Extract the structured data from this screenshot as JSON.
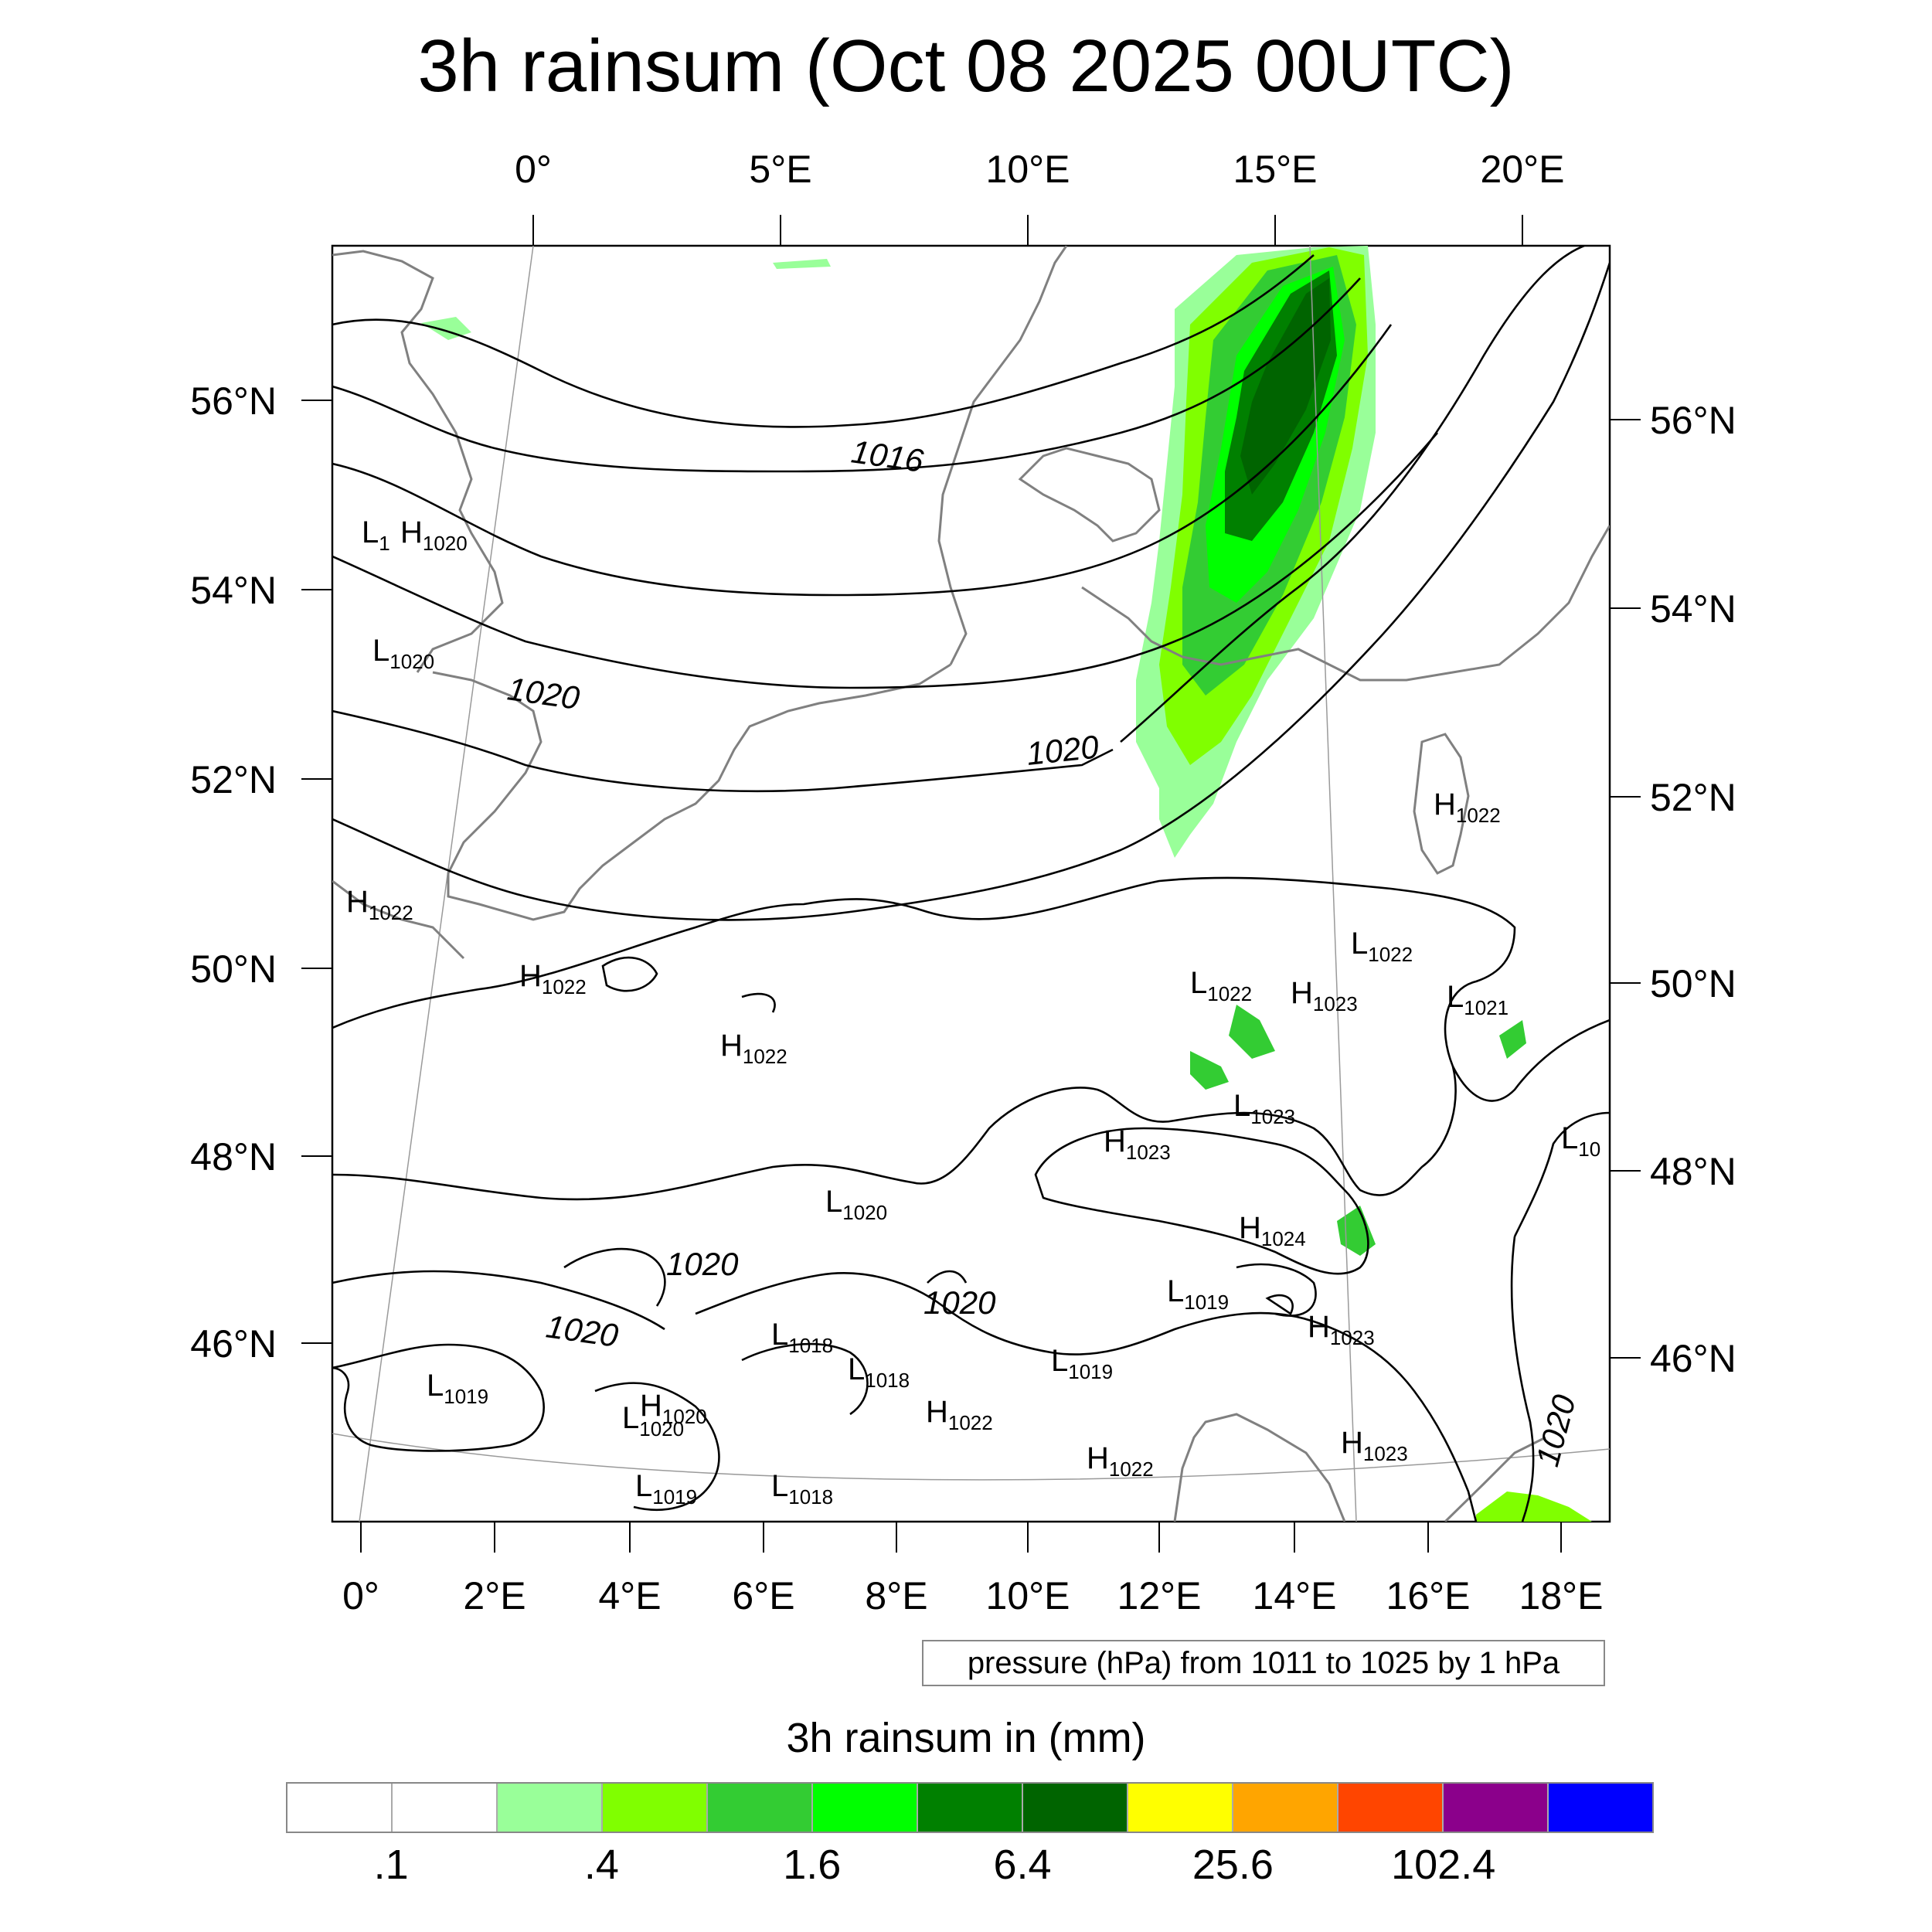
{
  "title": "3h rainsum (Oct 08 2025 00UTC)",
  "top_lon_labels": [
    "0°",
    "5°E",
    "10°E",
    "15°E",
    "20°E"
  ],
  "left_lat_labels": [
    "56°N",
    "54°N",
    "52°N",
    "50°N",
    "48°N",
    "46°N"
  ],
  "right_lat_labels": [
    "56°N",
    "54°N",
    "52°N",
    "50°N",
    "48°N",
    "46°N"
  ],
  "bottom_lon_labels": [
    "0°",
    "2°E",
    "4°E",
    "6°E",
    "8°E",
    "10°E",
    "12°E",
    "14°E",
    "16°E",
    "18°E"
  ],
  "contour_labels": [
    "1016",
    "1020",
    "1020",
    "1020",
    "1020",
    "1020",
    "1020"
  ],
  "pressure_systems": [
    {
      "type": "L",
      "value": "1"
    },
    {
      "type": "H",
      "value": "1020"
    },
    {
      "type": "L",
      "value": "1020"
    },
    {
      "type": "H",
      "value": "1022"
    },
    {
      "type": "H",
      "value": "1022"
    },
    {
      "type": "H",
      "value": "1022"
    },
    {
      "type": "H",
      "value": "1022"
    },
    {
      "type": "L",
      "value": "1022"
    },
    {
      "type": "L",
      "value": "1022"
    },
    {
      "type": "H",
      "value": "1023"
    },
    {
      "type": "L",
      "value": "1021"
    },
    {
      "type": "L",
      "value": "1023"
    },
    {
      "type": "H",
      "value": "1023"
    },
    {
      "type": "L",
      "value": "10"
    },
    {
      "type": "L",
      "value": "1020"
    },
    {
      "type": "H",
      "value": "1024"
    },
    {
      "type": "L",
      "value": "1019"
    },
    {
      "type": "H",
      "value": "1023"
    },
    {
      "type": "L",
      "value": "1018"
    },
    {
      "type": "L",
      "value": "1018"
    },
    {
      "type": "L",
      "value": "1019"
    },
    {
      "type": "L",
      "value": "1019"
    },
    {
      "type": "L",
      "value": "1020"
    },
    {
      "type": "H",
      "value": "1020"
    },
    {
      "type": "H",
      "value": "1022"
    },
    {
      "type": "H",
      "value": "1022"
    },
    {
      "type": "H",
      "value": "1023"
    },
    {
      "type": "L",
      "value": "1019"
    },
    {
      "type": "L",
      "value": "1018"
    }
  ],
  "pressure_note": "pressure (hPa) from 1011 to 1025 by 1 hPa",
  "colorbar": {
    "title": "3h rainsum in (mm)",
    "colors": [
      "#ffffff",
      "#ffffff",
      "#99ff99",
      "#80ff00",
      "#33cc33",
      "#00ff00",
      "#008000",
      "#006400",
      "#ffff00",
      "#ffa500",
      "#ff4500",
      "#8b008b",
      "#0000ff"
    ],
    "tick_labels": [
      ".1",
      ".4",
      "1.6",
      "6.4",
      "25.6",
      "102.4"
    ]
  }
}
